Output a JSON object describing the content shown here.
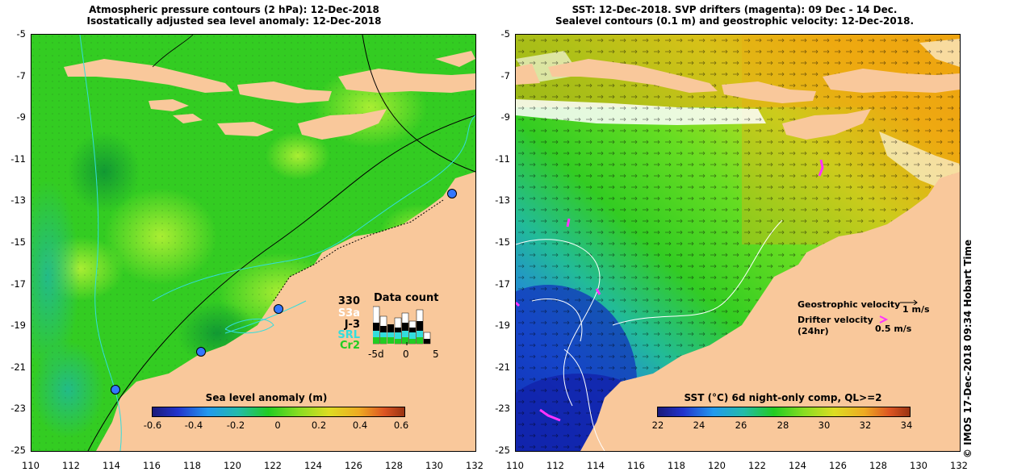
{
  "left_panel": {
    "title_line1": "Atmospheric pressure contours (2 hPa): 12-Dec-2018",
    "title_line2": "Isostatically adjusted sea level anomaly: 12-Dec-2018",
    "y_ticks": [
      "-5",
      "-7",
      "-9",
      "-11",
      "-13",
      "-15",
      "-17",
      "-19",
      "-21",
      "-23",
      "-25"
    ],
    "x_ticks": [
      "110",
      "112",
      "114",
      "116",
      "118",
      "120",
      "122",
      "124",
      "126",
      "128",
      "130",
      "132"
    ],
    "colorbar": {
      "title": "Sea level anomaly (m)",
      "labels": [
        "-0.6",
        "-0.4",
        "-0.2",
        "0",
        "0.2",
        "0.4",
        "0.6"
      ],
      "range": [
        -0.6,
        0.6
      ]
    },
    "data_count": {
      "title": "Data count",
      "total": "330",
      "missions": [
        {
          "name": "S3a",
          "color": "#ffffff"
        },
        {
          "name": "J-3",
          "color": "#000000"
        },
        {
          "name": "SRL",
          "color": "#33dddd"
        },
        {
          "name": "Cr2",
          "color": "#22cc22"
        }
      ],
      "axis_labels": [
        "-5d",
        "0",
        "5"
      ]
    },
    "colors": {
      "land": "#f9c89b",
      "sea_base": "#33cc22"
    }
  },
  "right_panel": {
    "title_line1": "SST: 12-Dec-2018. SVP drifters (magenta): 09 Dec - 14 Dec.",
    "title_line2": "Sealevel contours (0.1 m) and geostrophic velocity: 12-Dec-2018.",
    "y_ticks": [
      "-5",
      "-7",
      "-9",
      "-11",
      "-13",
      "-15",
      "-17",
      "-19",
      "-21",
      "-23",
      "-25"
    ],
    "x_ticks": [
      "110",
      "112",
      "114",
      "116",
      "118",
      "120",
      "122",
      "124",
      "126",
      "128",
      "130",
      "132"
    ],
    "colorbar": {
      "title": "SST (°C) 6d night-only comp, QL>=2",
      "labels": [
        "22",
        "24",
        "26",
        "28",
        "30",
        "32",
        "34"
      ],
      "range": [
        22,
        34
      ]
    },
    "legend": {
      "geostrophic": "Geostrophic velocity",
      "geostrophic_scale": "1 m/s",
      "drifter_line1": "Drifter velocity",
      "drifter_line2": "(24hr)",
      "drifter_scale": "0.5 m/s"
    },
    "colors": {
      "land": "#f9c89b",
      "drifter": "#ff33ff"
    }
  },
  "credit": "© IMOS 17-Dec-2018 09:34 Hobart Time"
}
